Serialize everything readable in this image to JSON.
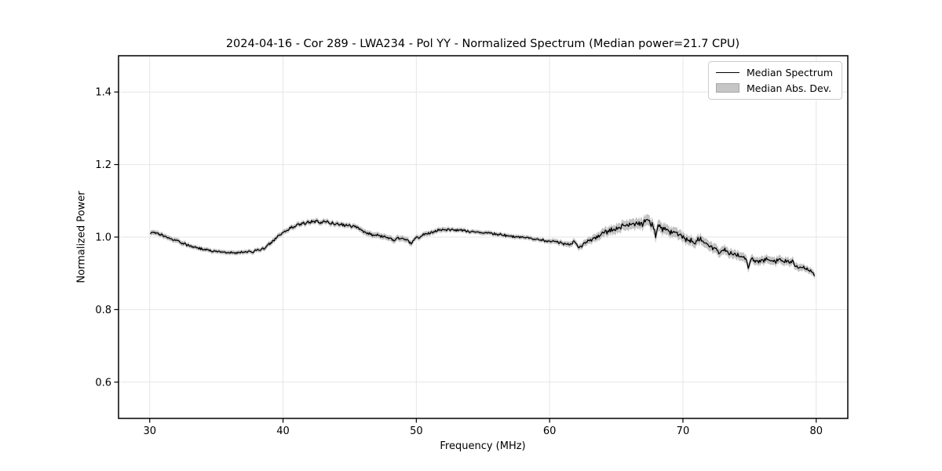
{
  "figure": {
    "title": "2024-04-16 - Cor 289 - LWA234 - Pol YY - Normalized Spectrum (Median power=21.7 CPU)",
    "xlabel": "Frequency (MHz)",
    "ylabel": "Normalized Power",
    "legend_items": [
      {
        "label": "Median Spectrum",
        "swatch": "black-line",
        "color": "#000000"
      },
      {
        "label": "Median Abs. Dev.",
        "swatch": "gray-patch",
        "color": "#c6c6c6"
      }
    ],
    "colors": {
      "background": "#ffffff",
      "line": "#000000",
      "band": "#c3c3c3",
      "grid": "#e6e6e6",
      "spine": "#000000"
    }
  },
  "chart_data": {
    "type": "line",
    "title": "2024-04-16 - Cor 289 - LWA234 - Pol YY - Normalized Spectrum (Median power=21.7 CPU)",
    "xlabel": "Frequency (MHz)",
    "ylabel": "Normalized Power",
    "xlim": [
      27.66,
      82.37
    ],
    "ylim": [
      0.5,
      1.5
    ],
    "xticks": [
      30,
      40,
      50,
      60,
      70,
      80
    ],
    "yticks": [
      0.6,
      0.8,
      1.0,
      1.2,
      1.4
    ],
    "grid": true,
    "legend_position": "upper right",
    "noise_amplitude_factor": 0.7,
    "sample_step_mhz": 0.065,
    "series": [
      {
        "name": "Median Spectrum",
        "type": "line",
        "color": "#000000",
        "point_format": "[frequency_mhz, normalized_power, median_abs_dev]",
        "points": [
          [
            30.0,
            1.008,
            0.007
          ],
          [
            30.2,
            1.014,
            0.007
          ],
          [
            30.5,
            1.01,
            0.007
          ],
          [
            30.8,
            1.006,
            0.007
          ],
          [
            31.2,
            1.0,
            0.007
          ],
          [
            31.6,
            0.995,
            0.007
          ],
          [
            32.0,
            0.99,
            0.007
          ],
          [
            32.5,
            0.982,
            0.007
          ],
          [
            33.0,
            0.976,
            0.006
          ],
          [
            33.5,
            0.971,
            0.006
          ],
          [
            34.0,
            0.966,
            0.006
          ],
          [
            34.5,
            0.963,
            0.006
          ],
          [
            35.0,
            0.96,
            0.006
          ],
          [
            35.5,
            0.959,
            0.006
          ],
          [
            36.0,
            0.957,
            0.006
          ],
          [
            36.5,
            0.956,
            0.006
          ],
          [
            37.0,
            0.957,
            0.006
          ],
          [
            37.5,
            0.959,
            0.006
          ],
          [
            38.0,
            0.962,
            0.006
          ],
          [
            38.4,
            0.966,
            0.006
          ],
          [
            38.8,
            0.975,
            0.007
          ],
          [
            39.2,
            0.988,
            0.007
          ],
          [
            39.6,
            1.0,
            0.007
          ],
          [
            40.0,
            1.013,
            0.007
          ],
          [
            40.4,
            1.02,
            0.007
          ],
          [
            40.8,
            1.03,
            0.007
          ],
          [
            41.2,
            1.034,
            0.007
          ],
          [
            41.6,
            1.038,
            0.007
          ],
          [
            42.0,
            1.041,
            0.007
          ],
          [
            42.4,
            1.044,
            0.007
          ],
          [
            42.8,
            1.04,
            0.007
          ],
          [
            43.2,
            1.042,
            0.007
          ],
          [
            43.6,
            1.038,
            0.007
          ],
          [
            44.0,
            1.036,
            0.007
          ],
          [
            44.4,
            1.034,
            0.007
          ],
          [
            44.8,
            1.033,
            0.007
          ],
          [
            45.2,
            1.03,
            0.007
          ],
          [
            45.6,
            1.026,
            0.007
          ],
          [
            46.0,
            1.018,
            0.008
          ],
          [
            46.4,
            1.01,
            0.008
          ],
          [
            46.8,
            1.005,
            0.008
          ],
          [
            47.2,
            1.003,
            0.008
          ],
          [
            47.6,
            1.0,
            0.008
          ],
          [
            48.0,
            0.998,
            0.008
          ],
          [
            48.3,
            0.99,
            0.008
          ],
          [
            48.6,
            0.999,
            0.008
          ],
          [
            49.0,
            0.995,
            0.008
          ],
          [
            49.3,
            0.99,
            0.008
          ],
          [
            49.6,
            0.982,
            0.008
          ],
          [
            49.9,
            0.995,
            0.007
          ],
          [
            50.2,
            1.0,
            0.007
          ],
          [
            50.6,
            1.006,
            0.007
          ],
          [
            51.0,
            1.012,
            0.007
          ],
          [
            51.4,
            1.016,
            0.007
          ],
          [
            51.8,
            1.019,
            0.007
          ],
          [
            52.2,
            1.022,
            0.007
          ],
          [
            52.6,
            1.021,
            0.006
          ],
          [
            53.0,
            1.02,
            0.006
          ],
          [
            53.4,
            1.019,
            0.006
          ],
          [
            53.8,
            1.017,
            0.006
          ],
          [
            54.2,
            1.015,
            0.006
          ],
          [
            54.6,
            1.013,
            0.006
          ],
          [
            55.0,
            1.012,
            0.006
          ],
          [
            55.4,
            1.011,
            0.006
          ],
          [
            55.8,
            1.009,
            0.006
          ],
          [
            56.2,
            1.007,
            0.006
          ],
          [
            56.6,
            1.005,
            0.006
          ],
          [
            57.0,
            1.003,
            0.006
          ],
          [
            57.4,
            1.001,
            0.006
          ],
          [
            57.8,
            1.0,
            0.006
          ],
          [
            58.2,
            0.998,
            0.006
          ],
          [
            58.6,
            0.996,
            0.006
          ],
          [
            59.0,
            0.994,
            0.006
          ],
          [
            59.4,
            0.992,
            0.006
          ],
          [
            59.8,
            0.99,
            0.006
          ],
          [
            60.2,
            0.988,
            0.007
          ],
          [
            60.6,
            0.985,
            0.007
          ],
          [
            61.0,
            0.983,
            0.007
          ],
          [
            61.5,
            0.978,
            0.008
          ],
          [
            61.9,
            0.988,
            0.008
          ],
          [
            62.2,
            0.97,
            0.008
          ],
          [
            62.6,
            0.982,
            0.009
          ],
          [
            63.0,
            0.99,
            0.01
          ],
          [
            63.5,
            1.0,
            0.011
          ],
          [
            64.0,
            1.011,
            0.012
          ],
          [
            64.5,
            1.018,
            0.012
          ],
          [
            65.0,
            1.024,
            0.013
          ],
          [
            65.5,
            1.028,
            0.013
          ],
          [
            66.0,
            1.033,
            0.014
          ],
          [
            66.3,
            1.042,
            0.014
          ],
          [
            66.6,
            1.036,
            0.014
          ],
          [
            67.0,
            1.038,
            0.015
          ],
          [
            67.3,
            1.042,
            0.015
          ],
          [
            67.6,
            1.037,
            0.015
          ],
          [
            67.8,
            1.03,
            0.016
          ],
          [
            67.95,
            1.003,
            0.016
          ],
          [
            68.1,
            1.031,
            0.016
          ],
          [
            68.5,
            1.024,
            0.015
          ],
          [
            69.0,
            1.016,
            0.014
          ],
          [
            69.5,
            1.01,
            0.014
          ],
          [
            70.0,
            0.999,
            0.013
          ],
          [
            70.3,
            0.992,
            0.013
          ],
          [
            70.7,
            0.988,
            0.013
          ],
          [
            71.0,
            0.987,
            0.013
          ],
          [
            71.3,
            0.995,
            0.013
          ],
          [
            71.6,
            0.985,
            0.013
          ],
          [
            72.0,
            0.974,
            0.013
          ],
          [
            72.5,
            0.967,
            0.013
          ],
          [
            72.8,
            0.956,
            0.012
          ],
          [
            73.0,
            0.968,
            0.012
          ],
          [
            73.3,
            0.959,
            0.012
          ],
          [
            73.7,
            0.955,
            0.012
          ],
          [
            74.0,
            0.951,
            0.012
          ],
          [
            74.4,
            0.945,
            0.012
          ],
          [
            74.75,
            0.94,
            0.012
          ],
          [
            74.9,
            0.913,
            0.012
          ],
          [
            75.1,
            0.941,
            0.011
          ],
          [
            75.4,
            0.934,
            0.011
          ],
          [
            75.7,
            0.932,
            0.011
          ],
          [
            76.0,
            0.934,
            0.011
          ],
          [
            76.3,
            0.94,
            0.011
          ],
          [
            76.6,
            0.934,
            0.011
          ],
          [
            77.0,
            0.934,
            0.011
          ],
          [
            77.4,
            0.936,
            0.011
          ],
          [
            77.7,
            0.932,
            0.011
          ],
          [
            78.0,
            0.93,
            0.011
          ],
          [
            78.2,
            0.937,
            0.01
          ],
          [
            78.45,
            0.922,
            0.01
          ],
          [
            78.8,
            0.917,
            0.01
          ],
          [
            79.1,
            0.914,
            0.009
          ],
          [
            79.4,
            0.91,
            0.009
          ],
          [
            79.6,
            0.905,
            0.009
          ],
          [
            79.8,
            0.898,
            0.008
          ],
          [
            79.95,
            0.892,
            0.008
          ]
        ]
      },
      {
        "name": "Median Abs. Dev.",
        "type": "band",
        "color": "#c3c3c3",
        "band_source": "median_abs_dev column of Median Spectrum points (line ± MAD)"
      }
    ]
  }
}
